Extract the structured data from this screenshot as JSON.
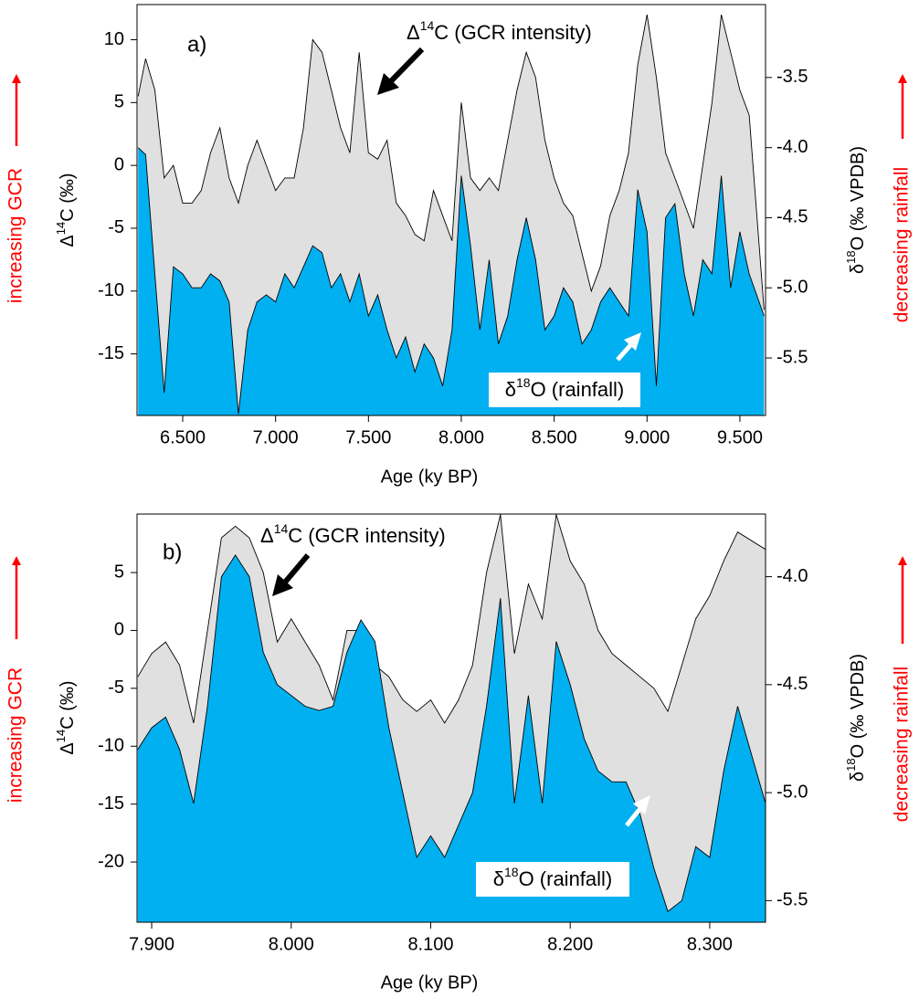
{
  "chart_data": [
    {
      "type": "area",
      "panel_label": "a)",
      "xlabel": "Age (ky BP)",
      "ylabel": {
        "pre": "Δ",
        "sup": "14",
        "post": "C (‰)"
      },
      "y2label": {
        "pre": "δ",
        "sup": "18",
        "post": "O (‰ VPDB)"
      },
      "side_labels": {
        "left": "increasing GCR",
        "right": "decreasing rainfall"
      },
      "xlim": [
        6.254,
        9.638
      ],
      "xticks": [
        {
          "value": 6.5,
          "label": "6.500"
        },
        {
          "value": 7.0,
          "label": "7.000"
        },
        {
          "value": 7.5,
          "label": "7.500"
        },
        {
          "value": 8.0,
          "label": "8.000"
        },
        {
          "value": 8.5,
          "label": "8.500"
        },
        {
          "value": 9.0,
          "label": "9.000"
        },
        {
          "value": 9.5,
          "label": "9.500"
        }
      ],
      "ylim": [
        -19.9,
        12.8
      ],
      "yticks": [
        -15,
        -10,
        -5,
        0,
        5,
        10
      ],
      "y2lim": [
        -5.91,
        -2.98
      ],
      "y2ticks": [
        {
          "value": -5.5,
          "label": "-5.5"
        },
        {
          "value": -5.0,
          "label": "-5.0"
        },
        {
          "value": -4.5,
          "label": "-4.5"
        },
        {
          "value": -4.0,
          "label": "-4.0"
        },
        {
          "value": -3.5,
          "label": "-3.5"
        }
      ],
      "x": [
        6.26,
        6.3,
        6.35,
        6.4,
        6.45,
        6.5,
        6.55,
        6.6,
        6.65,
        6.7,
        6.75,
        6.8,
        6.85,
        6.9,
        6.95,
        7.0,
        7.05,
        7.1,
        7.15,
        7.2,
        7.25,
        7.3,
        7.35,
        7.4,
        7.45,
        7.5,
        7.55,
        7.6,
        7.65,
        7.7,
        7.75,
        7.8,
        7.85,
        7.9,
        7.95,
        8.0,
        8.05,
        8.1,
        8.15,
        8.2,
        8.25,
        8.3,
        8.35,
        8.4,
        8.45,
        8.5,
        8.55,
        8.6,
        8.65,
        8.7,
        8.75,
        8.8,
        8.85,
        8.9,
        8.95,
        9.0,
        9.05,
        9.1,
        9.15,
        9.2,
        9.25,
        9.3,
        9.35,
        9.4,
        9.45,
        9.5,
        9.55,
        9.63
      ],
      "series": [
        {
          "label": {
            "pre": "Δ",
            "sup": "14",
            "post": "C (GCR intensity)"
          },
          "color": "#e0e0e0",
          "axis": "y",
          "values": [
            5.5,
            8.5,
            6,
            -1,
            0,
            -3,
            -3,
            -2,
            1,
            3,
            -1,
            -3,
            0,
            2,
            0,
            -2,
            -1,
            -1,
            3,
            10,
            9,
            6,
            3,
            1,
            9,
            1,
            0.5,
            2,
            -3,
            -4,
            -5.5,
            -6,
            -2,
            -4,
            -6,
            5,
            -1,
            -2,
            -1,
            -2,
            2,
            6,
            9,
            7,
            2,
            -1,
            -3,
            -4,
            -7,
            -10,
            -8,
            -4,
            -2,
            1,
            8,
            12,
            7,
            1,
            -1,
            -3,
            -5,
            0,
            5,
            12,
            9,
            6,
            4,
            -11.5
          ]
        },
        {
          "label": {
            "pre": "δ",
            "sup": "18",
            "post": "O (rainfall)"
          },
          "color": "#00b0f0",
          "axis": "y2",
          "values": [
            -4.0,
            -4.05,
            -4.9,
            -5.75,
            -4.85,
            -4.9,
            -5.0,
            -5.0,
            -4.9,
            -4.95,
            -5.1,
            -5.9,
            -5.3,
            -5.1,
            -5.05,
            -5.1,
            -4.9,
            -5.0,
            -4.85,
            -4.7,
            -4.75,
            -5.0,
            -4.9,
            -5.1,
            -4.9,
            -5.2,
            -5.05,
            -5.3,
            -5.5,
            -5.35,
            -5.6,
            -5.4,
            -5.5,
            -5.7,
            -5.3,
            -4.2,
            -4.7,
            -5.3,
            -4.8,
            -5.4,
            -5.2,
            -4.8,
            -4.5,
            -4.8,
            -5.3,
            -5.2,
            -5.0,
            -5.1,
            -5.4,
            -5.3,
            -5.1,
            -5.0,
            -5.1,
            -5.2,
            -4.3,
            -4.6,
            -5.7,
            -4.5,
            -4.4,
            -4.9,
            -5.2,
            -4.8,
            -4.9,
            -4.2,
            -5.0,
            -4.6,
            -4.9,
            -5.2
          ]
        }
      ]
    },
    {
      "type": "area",
      "panel_label": "b)",
      "xlabel": "Age (ky BP)",
      "ylabel": {
        "pre": "Δ",
        "sup": "14",
        "post": "C (‰)"
      },
      "y2label": {
        "pre": "δ",
        "sup": "18",
        "post": "O (‰ VPDB)"
      },
      "side_labels": {
        "left": "increasing GCR",
        "right": "decreasing rainfall"
      },
      "xlim": [
        7.8895,
        8.34
      ],
      "xticks": [
        {
          "value": 7.9,
          "label": "7.900"
        },
        {
          "value": 8.0,
          "label": "8.000"
        },
        {
          "value": 8.1,
          "label": "8.100"
        },
        {
          "value": 8.2,
          "label": "8.200"
        },
        {
          "value": 8.3,
          "label": "8.300"
        }
      ],
      "ylim": [
        -25.2,
        10.05
      ],
      "yticks": [
        -20,
        -15,
        -10,
        -5,
        0,
        5
      ],
      "y2lim": [
        -5.6,
        -3.71
      ],
      "y2ticks": [
        {
          "value": -5.5,
          "label": "-5.5"
        },
        {
          "value": -5.0,
          "label": "-5.0"
        },
        {
          "value": -4.5,
          "label": "-4.5"
        },
        {
          "value": -4.0,
          "label": "-4.0"
        }
      ],
      "x": [
        7.89,
        7.9,
        7.91,
        7.92,
        7.93,
        7.94,
        7.95,
        7.96,
        7.97,
        7.98,
        7.99,
        8.0,
        8.01,
        8.02,
        8.03,
        8.04,
        8.05,
        8.06,
        8.07,
        8.08,
        8.09,
        8.1,
        8.11,
        8.12,
        8.13,
        8.14,
        8.15,
        8.16,
        8.17,
        8.18,
        8.19,
        8.2,
        8.21,
        8.22,
        8.23,
        8.24,
        8.25,
        8.26,
        8.27,
        8.28,
        8.29,
        8.3,
        8.31,
        8.32,
        8.34
      ],
      "series": [
        {
          "label": {
            "pre": "Δ",
            "sup": "14",
            "post": "C (GCR intensity)"
          },
          "color": "#e0e0e0",
          "axis": "y",
          "values": [
            -4,
            -2,
            -1,
            -3,
            -8,
            0,
            8,
            9,
            8,
            5,
            -1,
            1,
            -1,
            -3,
            -6,
            0,
            0,
            -3,
            -4,
            -6,
            -7,
            -6,
            -8,
            -6,
            -3,
            5,
            10,
            -2,
            4,
            1,
            10,
            6,
            4,
            0,
            -2,
            -3,
            -4,
            -5,
            -7,
            -3,
            1,
            3,
            6,
            8.5,
            7
          ]
        },
        {
          "label": {
            "pre": "δ",
            "sup": "18",
            "post": "O (rainfall)"
          },
          "color": "#00b0f0",
          "axis": "y2",
          "values": [
            -4.8,
            -4.7,
            -4.65,
            -4.8,
            -5.05,
            -4.6,
            -4.0,
            -3.9,
            -4.0,
            -4.35,
            -4.5,
            -4.55,
            -4.6,
            -4.62,
            -4.6,
            -4.35,
            -4.2,
            -4.3,
            -4.7,
            -5.0,
            -5.3,
            -5.2,
            -5.3,
            -5.15,
            -5.0,
            -4.6,
            -4.1,
            -5.05,
            -4.55,
            -5.05,
            -4.3,
            -4.5,
            -4.75,
            -4.9,
            -4.95,
            -4.95,
            -5.1,
            -5.35,
            -5.55,
            -5.5,
            -5.25,
            -5.3,
            -4.9,
            -4.6,
            -5.05
          ]
        }
      ]
    }
  ]
}
